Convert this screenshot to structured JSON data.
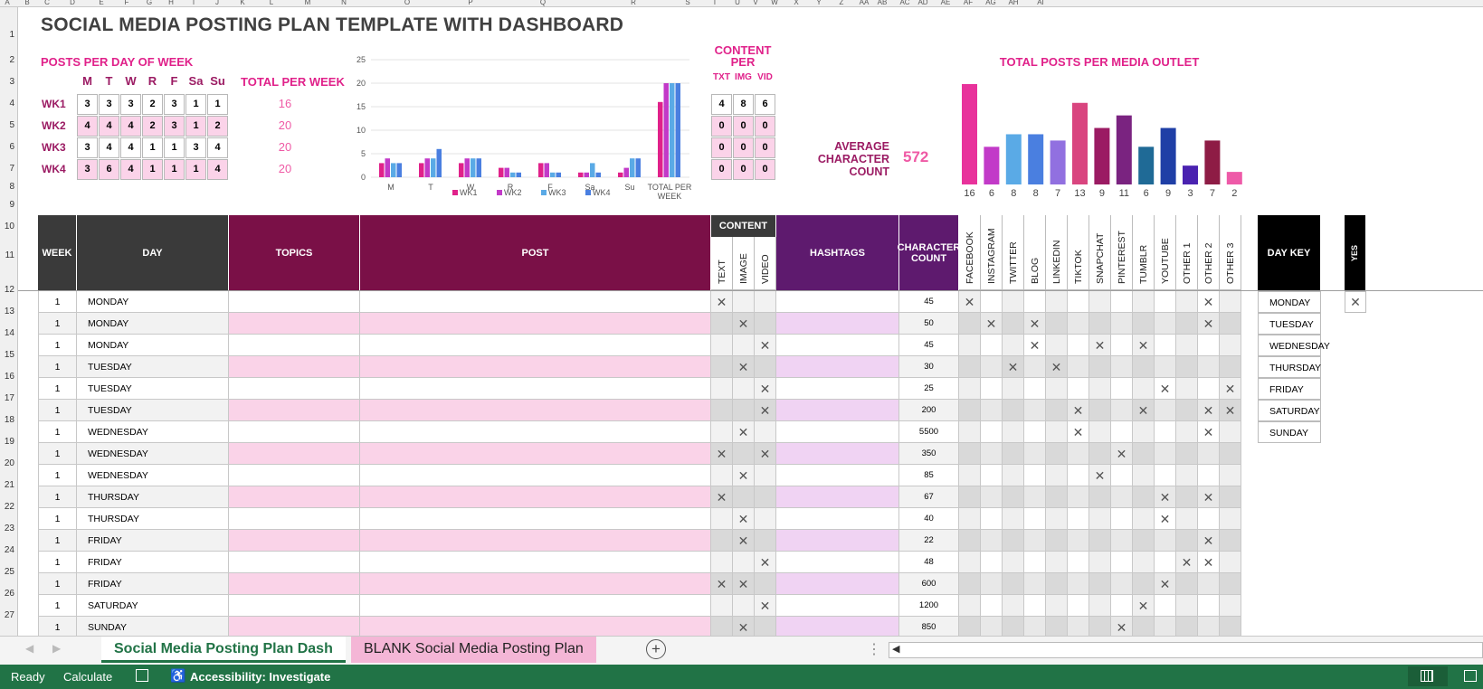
{
  "column_letters": [
    "A",
    "B",
    "C",
    "D",
    "E",
    "F",
    "G",
    "H",
    "I",
    "J",
    "K",
    "L",
    "M",
    "N",
    "O",
    "P",
    "Q",
    "R",
    "S",
    "T",
    "U",
    "V",
    "W",
    "X",
    "Y",
    "Z",
    "AA",
    "AB",
    "AC",
    "AD",
    "AE",
    "AF",
    "AG",
    "AH",
    "AI"
  ],
  "row_numbers": [
    "1",
    "2",
    "3",
    "4",
    "5",
    "6",
    "7",
    "8",
    "9",
    "10",
    "11",
    "12",
    "13",
    "14",
    "15",
    "16",
    "17",
    "18",
    "19",
    "20",
    "21",
    "22",
    "23",
    "24",
    "25",
    "26",
    "27"
  ],
  "title": "SOCIAL MEDIA POSTING PLAN TEMPLATE WITH DASHBOARD",
  "posts_per_day": {
    "heading": "POSTS PER DAY OF WEEK",
    "days": [
      "M",
      "T",
      "W",
      "R",
      "F",
      "Sa",
      "Su"
    ],
    "total_heading": "TOTAL PER WEEK",
    "weeks": [
      {
        "label": "WK1",
        "values": [
          3,
          3,
          3,
          2,
          3,
          1,
          1
        ],
        "total": "16"
      },
      {
        "label": "WK2",
        "values": [
          4,
          4,
          4,
          2,
          3,
          1,
          2
        ],
        "total": "20"
      },
      {
        "label": "WK3",
        "values": [
          3,
          4,
          4,
          1,
          1,
          3,
          4
        ],
        "total": "20"
      },
      {
        "label": "WK4",
        "values": [
          3,
          6,
          4,
          1,
          1,
          1,
          4
        ],
        "total": "20"
      }
    ]
  },
  "chart_data": [
    {
      "type": "bar",
      "categories": [
        "M",
        "T",
        "W",
        "R",
        "F",
        "Sa",
        "Su",
        "TOTAL PER WEEK"
      ],
      "series": [
        {
          "name": "WK1",
          "values": [
            3,
            3,
            3,
            2,
            3,
            1,
            1,
            16
          ]
        },
        {
          "name": "WK2",
          "values": [
            4,
            4,
            4,
            2,
            3,
            1,
            2,
            20
          ]
        },
        {
          "name": "WK3",
          "values": [
            3,
            4,
            4,
            1,
            1,
            3,
            4,
            20
          ]
        },
        {
          "name": "WK4",
          "values": [
            3,
            6,
            4,
            1,
            1,
            1,
            4,
            20
          ]
        }
      ],
      "ylim": [
        0,
        25
      ],
      "yticks": [
        0,
        5,
        10,
        15,
        20,
        25
      ],
      "legend": "bottom",
      "grid": true,
      "colors": [
        "#e0218a",
        "#c23ac8",
        "#5aaae6",
        "#4a7fe0"
      ]
    },
    {
      "type": "bar",
      "title": "TOTAL POSTS PER MEDIA OUTLET",
      "categories": [
        "FACEBOOK",
        "INSTAGRAM",
        "TWITTER",
        "BLOG",
        "LINKEDIN",
        "TIKTOK",
        "SNAPCHAT",
        "PINTEREST",
        "TUMBLR",
        "YOUTUBE",
        "OTHER 1",
        "OTHER 2",
        "OTHER 3"
      ],
      "values": [
        16,
        6,
        8,
        8,
        7,
        13,
        9,
        11,
        6,
        9,
        3,
        7,
        2
      ],
      "colors": [
        "#e8329b",
        "#c23ac8",
        "#5aaae6",
        "#4a7fe0",
        "#9170e0",
        "#d9457f",
        "#9b1b63",
        "#7a2380",
        "#1f6a96",
        "#1f3fa6",
        "#4a22b0",
        "#8e1c45",
        "#ee5aa8"
      ],
      "ylim": [
        0,
        17
      ]
    }
  ],
  "content_per": {
    "heading": "CONTENT PER",
    "cols": [
      "TXT",
      "IMG",
      "VID"
    ],
    "rows": [
      [
        4,
        8,
        6
      ],
      [
        0,
        0,
        0
      ],
      [
        0,
        0,
        0
      ],
      [
        0,
        0,
        0
      ]
    ]
  },
  "avg_char": {
    "label": "AVERAGE CHARACTER COUNT",
    "value": "572"
  },
  "table": {
    "headers": {
      "week": "WEEK",
      "day": "DAY",
      "topics": "TOPICS",
      "post": "POST",
      "content": "CONTENT",
      "hashtags": "HASHTAGS",
      "char": "CHARACTER COUNT",
      "daykey": "DAY KEY",
      "yes": "YES"
    },
    "content_sub": [
      "TEXT",
      "IMAGE",
      "VIDEO"
    ],
    "outlets": [
      "FACEBOOK",
      "INSTAGRAM",
      "TWITTER",
      "BLOG",
      "LINKEDIN",
      "TIKTOK",
      "SNAPCHAT",
      "PINTEREST",
      "TUMBLR",
      "YOUTUBE",
      "OTHER 1",
      "OTHER 2",
      "OTHER 3"
    ],
    "mark": "✕",
    "rows": [
      {
        "week": "1",
        "day": "MONDAY",
        "content": [
          1,
          0,
          0
        ],
        "char": "45",
        "outlets": [
          1,
          0,
          0,
          0,
          0,
          0,
          0,
          0,
          0,
          0,
          0,
          1,
          0
        ]
      },
      {
        "week": "1",
        "day": "MONDAY",
        "content": [
          0,
          1,
          0
        ],
        "char": "50",
        "outlets": [
          0,
          1,
          0,
          1,
          0,
          0,
          0,
          0,
          0,
          0,
          0,
          1,
          0
        ]
      },
      {
        "week": "1",
        "day": "MONDAY",
        "content": [
          0,
          0,
          1
        ],
        "char": "45",
        "outlets": [
          0,
          0,
          0,
          1,
          0,
          0,
          1,
          0,
          1,
          0,
          0,
          0,
          0
        ]
      },
      {
        "week": "1",
        "day": "TUESDAY",
        "content": [
          0,
          1,
          0
        ],
        "char": "30",
        "outlets": [
          0,
          0,
          1,
          0,
          1,
          0,
          0,
          0,
          0,
          0,
          0,
          0,
          0
        ]
      },
      {
        "week": "1",
        "day": "TUESDAY",
        "content": [
          0,
          0,
          1
        ],
        "char": "25",
        "outlets": [
          0,
          0,
          0,
          0,
          0,
          0,
          0,
          0,
          0,
          1,
          0,
          0,
          1
        ]
      },
      {
        "week": "1",
        "day": "TUESDAY",
        "content": [
          0,
          0,
          1
        ],
        "char": "200",
        "outlets": [
          0,
          0,
          0,
          0,
          0,
          1,
          0,
          0,
          1,
          0,
          0,
          1,
          1
        ]
      },
      {
        "week": "1",
        "day": "WEDNESDAY",
        "content": [
          0,
          1,
          0
        ],
        "char": "5500",
        "outlets": [
          0,
          0,
          0,
          0,
          0,
          1,
          0,
          0,
          0,
          0,
          0,
          1,
          0
        ]
      },
      {
        "week": "1",
        "day": "WEDNESDAY",
        "content": [
          1,
          0,
          1
        ],
        "char": "350",
        "outlets": [
          0,
          0,
          0,
          0,
          0,
          0,
          0,
          1,
          0,
          0,
          0,
          0,
          0
        ]
      },
      {
        "week": "1",
        "day": "WEDNESDAY",
        "content": [
          0,
          1,
          0
        ],
        "char": "85",
        "outlets": [
          0,
          0,
          0,
          0,
          0,
          0,
          1,
          0,
          0,
          0,
          0,
          0,
          0
        ]
      },
      {
        "week": "1",
        "day": "THURSDAY",
        "content": [
          1,
          0,
          0
        ],
        "char": "67",
        "outlets": [
          0,
          0,
          0,
          0,
          0,
          0,
          0,
          0,
          0,
          1,
          0,
          1,
          0
        ]
      },
      {
        "week": "1",
        "day": "THURSDAY",
        "content": [
          0,
          1,
          0
        ],
        "char": "40",
        "outlets": [
          0,
          0,
          0,
          0,
          0,
          0,
          0,
          0,
          0,
          1,
          0,
          0,
          0
        ]
      },
      {
        "week": "1",
        "day": "FRIDAY",
        "content": [
          0,
          1,
          0
        ],
        "char": "22",
        "outlets": [
          0,
          0,
          0,
          0,
          0,
          0,
          0,
          0,
          0,
          0,
          0,
          1,
          0
        ]
      },
      {
        "week": "1",
        "day": "FRIDAY",
        "content": [
          0,
          0,
          1
        ],
        "char": "48",
        "outlets": [
          0,
          0,
          0,
          0,
          0,
          0,
          0,
          0,
          0,
          0,
          1,
          1,
          0
        ]
      },
      {
        "week": "1",
        "day": "FRIDAY",
        "content": [
          1,
          1,
          0
        ],
        "char": "600",
        "outlets": [
          0,
          0,
          0,
          0,
          0,
          0,
          0,
          0,
          0,
          1,
          0,
          0,
          0
        ]
      },
      {
        "week": "1",
        "day": "SATURDAY",
        "content": [
          0,
          0,
          1
        ],
        "char": "1200",
        "outlets": [
          0,
          0,
          0,
          0,
          0,
          0,
          0,
          0,
          1,
          0,
          0,
          0,
          0
        ]
      },
      {
        "week": "1",
        "day": "SUNDAY",
        "content": [
          0,
          1,
          0
        ],
        "char": "850",
        "outlets": [
          0,
          0,
          0,
          0,
          0,
          0,
          0,
          1,
          0,
          0,
          0,
          0,
          0
        ]
      }
    ],
    "day_key": [
      "MONDAY",
      "TUESDAY",
      "WEDNESDAY",
      "THURSDAY",
      "FRIDAY",
      "SATURDAY",
      "SUNDAY"
    ]
  },
  "tabs": [
    {
      "label": "Social Media Posting Plan Dash",
      "active": true
    },
    {
      "label": "BLANK Social Media Posting Plan",
      "active": false
    }
  ],
  "status": {
    "ready": "Ready",
    "calculate": "Calculate",
    "accessibility": "Accessibility: Investigate"
  }
}
